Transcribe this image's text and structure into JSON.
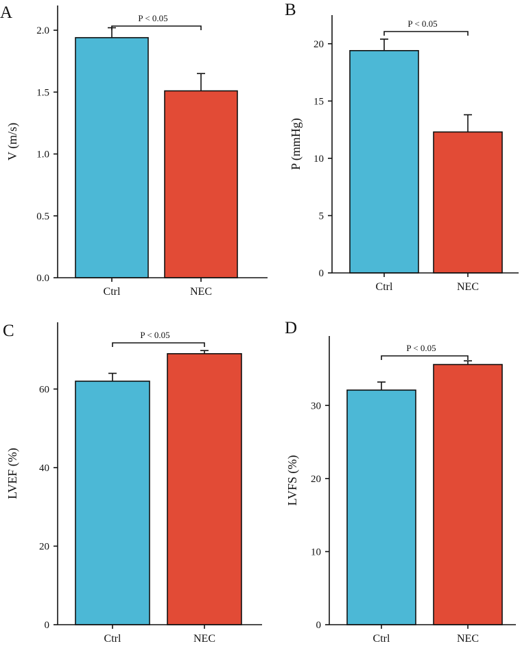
{
  "chart_data": [
    {
      "type": "bar",
      "panel_label": "A",
      "categories": [
        "Ctrl",
        "NEC"
      ],
      "values": [
        1.94,
        1.51
      ],
      "errors": [
        0.08,
        0.14
      ],
      "ylabel": "V (m/s)",
      "xlabel": "",
      "ylim": [
        0,
        2.2
      ],
      "yticks": [
        0.0,
        0.5,
        1.0,
        1.5,
        2.0
      ],
      "ytick_labels": [
        "0.0",
        "0.5",
        "1.0",
        "1.5",
        "2.0"
      ],
      "significance": "P < 0.05",
      "colors": [
        "#4cb8d6",
        "#e24b36"
      ]
    },
    {
      "type": "bar",
      "panel_label": "B",
      "categories": [
        "Ctrl",
        "NEC"
      ],
      "values": [
        19.4,
        12.3
      ],
      "errors": [
        1.0,
        1.5
      ],
      "ylabel": "P (mmHg)",
      "xlabel": "",
      "ylim": [
        0,
        22.5
      ],
      "yticks": [
        0,
        5,
        10,
        15,
        20
      ],
      "ytick_labels": [
        "0",
        "5",
        "10",
        "15",
        "20"
      ],
      "significance": "P < 0.05",
      "colors": [
        "#4cb8d6",
        "#e24b36"
      ]
    },
    {
      "type": "bar",
      "panel_label": "C",
      "categories": [
        "Ctrl",
        "NEC"
      ],
      "values": [
        62.0,
        69.0
      ],
      "errors": [
        2.0,
        0.8
      ],
      "ylabel": "LVEF (%)",
      "xlabel": "",
      "ylim": [
        0,
        77
      ],
      "yticks": [
        0,
        20,
        40,
        60
      ],
      "ytick_labels": [
        "0",
        "20",
        "40",
        "60"
      ],
      "significance": "P < 0.05",
      "colors": [
        "#4cb8d6",
        "#e24b36"
      ]
    },
    {
      "type": "bar",
      "panel_label": "D",
      "categories": [
        "Ctrl",
        "NEC"
      ],
      "values": [
        32.1,
        35.6
      ],
      "errors": [
        1.1,
        0.5
      ],
      "ylabel": "LVFS (%)",
      "xlabel": "",
      "ylim": [
        0,
        39.5
      ],
      "yticks": [
        0,
        10,
        20,
        30
      ],
      "ytick_labels": [
        "0",
        "10",
        "20",
        "30"
      ],
      "significance": "P < 0.05",
      "colors": [
        "#4cb8d6",
        "#e24b36"
      ]
    }
  ]
}
